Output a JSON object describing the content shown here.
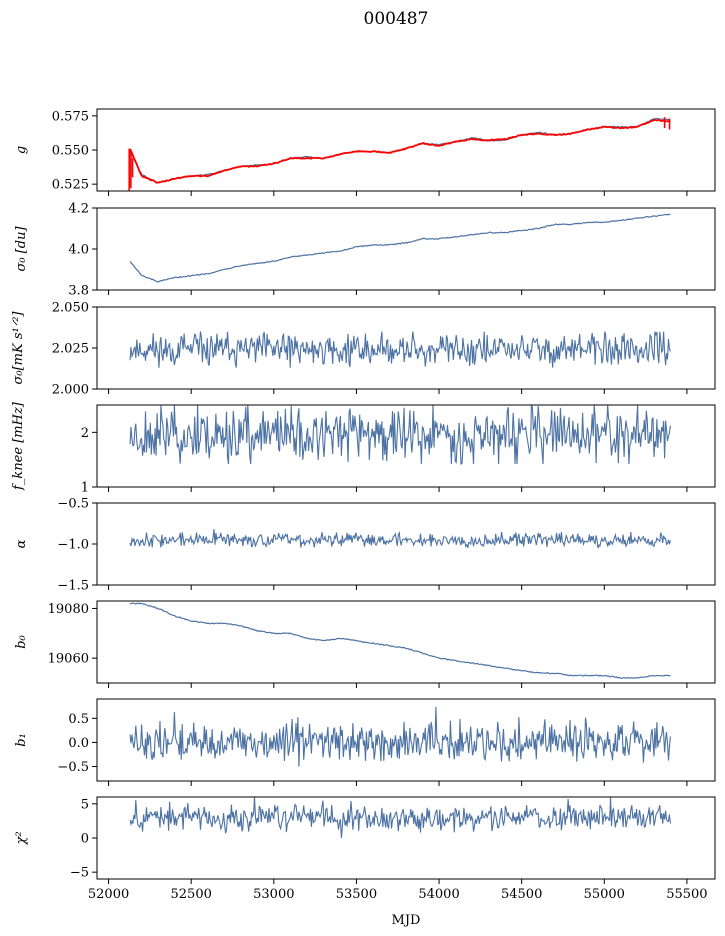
{
  "figure": {
    "title": "000487",
    "xlabel": "MJD",
    "x_tick_labels": [
      "52000",
      "52500",
      "53000",
      "53500",
      "54000",
      "54500",
      "55000",
      "55500"
    ]
  },
  "colors": {
    "series": "#4c72a4",
    "model": "#ff0000"
  },
  "chart_data": [
    {
      "type": "line",
      "name": "g",
      "ylabel": "g",
      "xlim": [
        51930,
        55670
      ],
      "ylim": [
        0.52,
        0.58
      ],
      "yticks": [
        0.525,
        0.55,
        0.575
      ],
      "ytick_labels": [
        "0.525",
        "0.550",
        "0.575"
      ],
      "xdata_range": [
        52130,
        55400
      ],
      "series": [
        {
          "name": "g-data",
          "x": [
            52130,
            52200,
            52300,
            52400,
            52500,
            52600,
            52700,
            52800,
            52900,
            53000,
            53100,
            53200,
            53300,
            53400,
            53500,
            53600,
            53700,
            53800,
            53900,
            54000,
            54100,
            54200,
            54300,
            54400,
            54500,
            54600,
            54700,
            54800,
            54900,
            55000,
            55100,
            55200,
            55300,
            55400
          ],
          "values": [
            0.549,
            0.532,
            0.526,
            0.529,
            0.531,
            0.532,
            0.535,
            0.538,
            0.539,
            0.54,
            0.544,
            0.545,
            0.544,
            0.547,
            0.549,
            0.549,
            0.548,
            0.551,
            0.555,
            0.554,
            0.556,
            0.559,
            0.557,
            0.557,
            0.561,
            0.563,
            0.561,
            0.562,
            0.565,
            0.567,
            0.567,
            0.567,
            0.573,
            0.572
          ]
        },
        {
          "name": "g-model",
          "x": [
            52130,
            52200,
            52300,
            52400,
            52500,
            52600,
            52700,
            52800,
            52900,
            53000,
            53100,
            53200,
            53300,
            53400,
            53500,
            53600,
            53700,
            53800,
            53900,
            54000,
            54100,
            54200,
            54300,
            54400,
            54500,
            54600,
            54700,
            54800,
            54900,
            55000,
            55100,
            55200,
            55300,
            55400
          ],
          "values": [
            0.551,
            0.531,
            0.526,
            0.529,
            0.531,
            0.531,
            0.535,
            0.538,
            0.538,
            0.54,
            0.544,
            0.544,
            0.544,
            0.547,
            0.549,
            0.549,
            0.548,
            0.551,
            0.555,
            0.553,
            0.556,
            0.558,
            0.557,
            0.558,
            0.561,
            0.562,
            0.561,
            0.562,
            0.565,
            0.567,
            0.566,
            0.567,
            0.572,
            0.571
          ]
        }
      ]
    },
    {
      "type": "line",
      "name": "sigma0-du",
      "ylabel": "σ₀ [du]",
      "xlim": [
        51930,
        55670
      ],
      "ylim": [
        3.8,
        4.2
      ],
      "yticks": [
        3.8,
        4.0,
        4.2
      ],
      "ytick_labels": [
        "3.8",
        "4.0",
        "4.2"
      ],
      "xdata_range": [
        52130,
        55400
      ],
      "series": [
        {
          "name": "sigma0-du",
          "x": [
            52130,
            52200,
            52300,
            52400,
            52500,
            52600,
            52700,
            52800,
            52900,
            53000,
            53100,
            53200,
            53300,
            53400,
            53500,
            53600,
            53700,
            53800,
            53900,
            54000,
            54100,
            54200,
            54300,
            54400,
            54500,
            54600,
            54700,
            54800,
            54900,
            55000,
            55100,
            55200,
            55300,
            55400
          ],
          "values": [
            3.94,
            3.87,
            3.84,
            3.86,
            3.87,
            3.88,
            3.9,
            3.92,
            3.93,
            3.94,
            3.96,
            3.97,
            3.98,
            3.99,
            4.01,
            4.02,
            4.02,
            4.03,
            4.05,
            4.05,
            4.06,
            4.07,
            4.08,
            4.08,
            4.09,
            4.1,
            4.12,
            4.12,
            4.13,
            4.13,
            4.14,
            4.15,
            4.16,
            4.17
          ]
        }
      ]
    },
    {
      "type": "line",
      "name": "sigma0-mks",
      "ylabel": "σ₀[mK s¹ᐟ²]",
      "xlim": [
        51930,
        55670
      ],
      "ylim": [
        2.0,
        2.05
      ],
      "yticks": [
        2.0,
        2.025,
        2.05
      ],
      "ytick_labels": [
        "2.000",
        "2.025",
        "2.050"
      ],
      "xdata_range": [
        52130,
        55400
      ],
      "noise": {
        "base": 2.024,
        "amplitude": 0.006,
        "seed": 11
      },
      "series": [
        {
          "name": "sigma0-mks",
          "mean": 2.024,
          "min": 2.013,
          "max": 2.035
        }
      ]
    },
    {
      "type": "line",
      "name": "fknee",
      "ylabel": "f_knee [mHz]",
      "xlim": [
        51930,
        55670
      ],
      "ylim": [
        1.0,
        2.5
      ],
      "yticks": [
        1,
        2
      ],
      "ytick_labels": [
        "1",
        "2"
      ],
      "xdata_range": [
        52130,
        55400
      ],
      "noise": {
        "base": 1.95,
        "amplitude": 0.3,
        "seed": 23
      },
      "series": [
        {
          "name": "fknee",
          "mean": 1.95,
          "min": 1.42,
          "max": 2.5
        }
      ]
    },
    {
      "type": "line",
      "name": "alpha",
      "ylabel": "α",
      "xlim": [
        51930,
        55670
      ],
      "ylim": [
        -1.5,
        -0.5
      ],
      "yticks": [
        -1.5,
        -1.0,
        -0.5
      ],
      "ytick_labels": [
        "−1.5",
        "−1.0",
        "−0.5"
      ],
      "xdata_range": [
        52130,
        55400
      ],
      "noise": {
        "base": -0.95,
        "amplitude": 0.05,
        "seed": 37
      },
      "series": [
        {
          "name": "alpha",
          "mean": -0.95,
          "min": -1.1,
          "max": -0.82
        }
      ]
    },
    {
      "type": "line",
      "name": "b0",
      "ylabel": "b₀",
      "xlim": [
        51930,
        55670
      ],
      "ylim": [
        19050,
        19083
      ],
      "yticks": [
        19060,
        19080
      ],
      "ytick_labels": [
        "19060",
        "19080"
      ],
      "xdata_range": [
        52130,
        55400
      ],
      "series": [
        {
          "name": "b0",
          "x": [
            52130,
            52200,
            52300,
            52400,
            52500,
            52600,
            52700,
            52800,
            52900,
            53000,
            53100,
            53200,
            53300,
            53400,
            53500,
            53600,
            53700,
            53800,
            53900,
            54000,
            54100,
            54200,
            54300,
            54400,
            54500,
            54600,
            54700,
            54800,
            54900,
            55000,
            55100,
            55200,
            55300,
            55400
          ],
          "values": [
            19082,
            19082,
            19080,
            19077,
            19075,
            19074,
            19074,
            19073,
            19071,
            19070,
            19070,
            19068,
            19067,
            19068,
            19067,
            19066,
            19065,
            19064,
            19062,
            19060,
            19059,
            19058,
            19057,
            19056,
            19055,
            19054,
            19054,
            19053,
            19053,
            19053,
            19052,
            19052,
            19053,
            19053
          ]
        }
      ]
    },
    {
      "type": "line",
      "name": "b1",
      "ylabel": "b₁",
      "xlim": [
        51930,
        55670
      ],
      "ylim": [
        -0.8,
        0.9
      ],
      "yticks": [
        -0.5,
        0.0,
        0.5
      ],
      "ytick_labels": [
        "−0.5",
        "0.0",
        "0.5"
      ],
      "xdata_range": [
        52130,
        55400
      ],
      "noise": {
        "base": 0.0,
        "amplitude": 0.24,
        "seed": 51
      },
      "series": [
        {
          "name": "b1",
          "mean": 0.0,
          "min": -0.75,
          "max": 0.8
        }
      ]
    },
    {
      "type": "line",
      "name": "chi2",
      "ylabel": "χ²",
      "xlim": [
        51930,
        55670
      ],
      "ylim": [
        -6,
        6
      ],
      "yticks": [
        -5,
        0,
        5
      ],
      "ytick_labels": [
        "−5",
        "0",
        "5"
      ],
      "xdata_range": [
        52130,
        55400
      ],
      "noise": {
        "base": 3.0,
        "amplitude": 1.1,
        "seed": 67
      },
      "series": [
        {
          "name": "chi2",
          "mean": 3.0,
          "min": 0.0,
          "max": 6.0
        }
      ]
    }
  ]
}
